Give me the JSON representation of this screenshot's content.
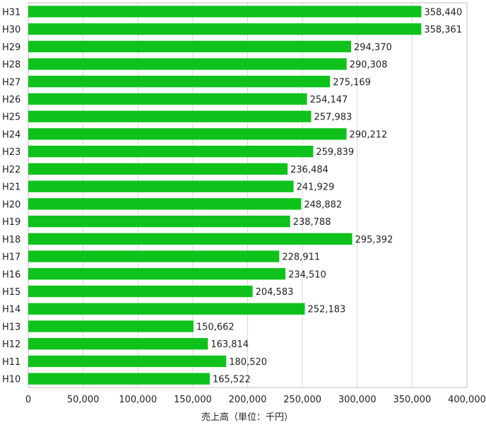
{
  "chart_data": {
    "type": "bar",
    "orientation": "horizontal",
    "categories": [
      "H31",
      "H30",
      "H29",
      "H28",
      "H27",
      "H26",
      "H25",
      "H24",
      "H23",
      "H22",
      "H21",
      "H20",
      "H19",
      "H18",
      "H17",
      "H16",
      "H15",
      "H14",
      "H13",
      "H12",
      "H11",
      "H10"
    ],
    "values": [
      358440,
      358361,
      294370,
      290308,
      275169,
      254147,
      257983,
      290212,
      259839,
      236484,
      241929,
      248882,
      238788,
      295392,
      228911,
      234510,
      204583,
      252183,
      150662,
      163814,
      180520,
      165522
    ],
    "value_labels": [
      "358,440",
      "358,361",
      "294,370",
      "290,308",
      "275,169",
      "254,147",
      "257,983",
      "290,212",
      "259,839",
      "236,484",
      "241,929",
      "248,882",
      "238,788",
      "295,392",
      "228,911",
      "234,510",
      "204,583",
      "252,183",
      "150,662",
      "163,814",
      "180,520",
      "165,522"
    ],
    "xlabel": "売上高（単位：千円）",
    "xlim": [
      0,
      400000
    ],
    "x_ticks": [
      0,
      50000,
      100000,
      150000,
      200000,
      250000,
      300000,
      350000,
      400000
    ],
    "x_tick_labels": [
      "0",
      "50,000",
      "100,000",
      "150,000",
      "200,000",
      "250,000",
      "300,000",
      "350,000",
      "400,000"
    ],
    "grid": true,
    "legend": "none",
    "bar_color": "#0ec21b"
  }
}
